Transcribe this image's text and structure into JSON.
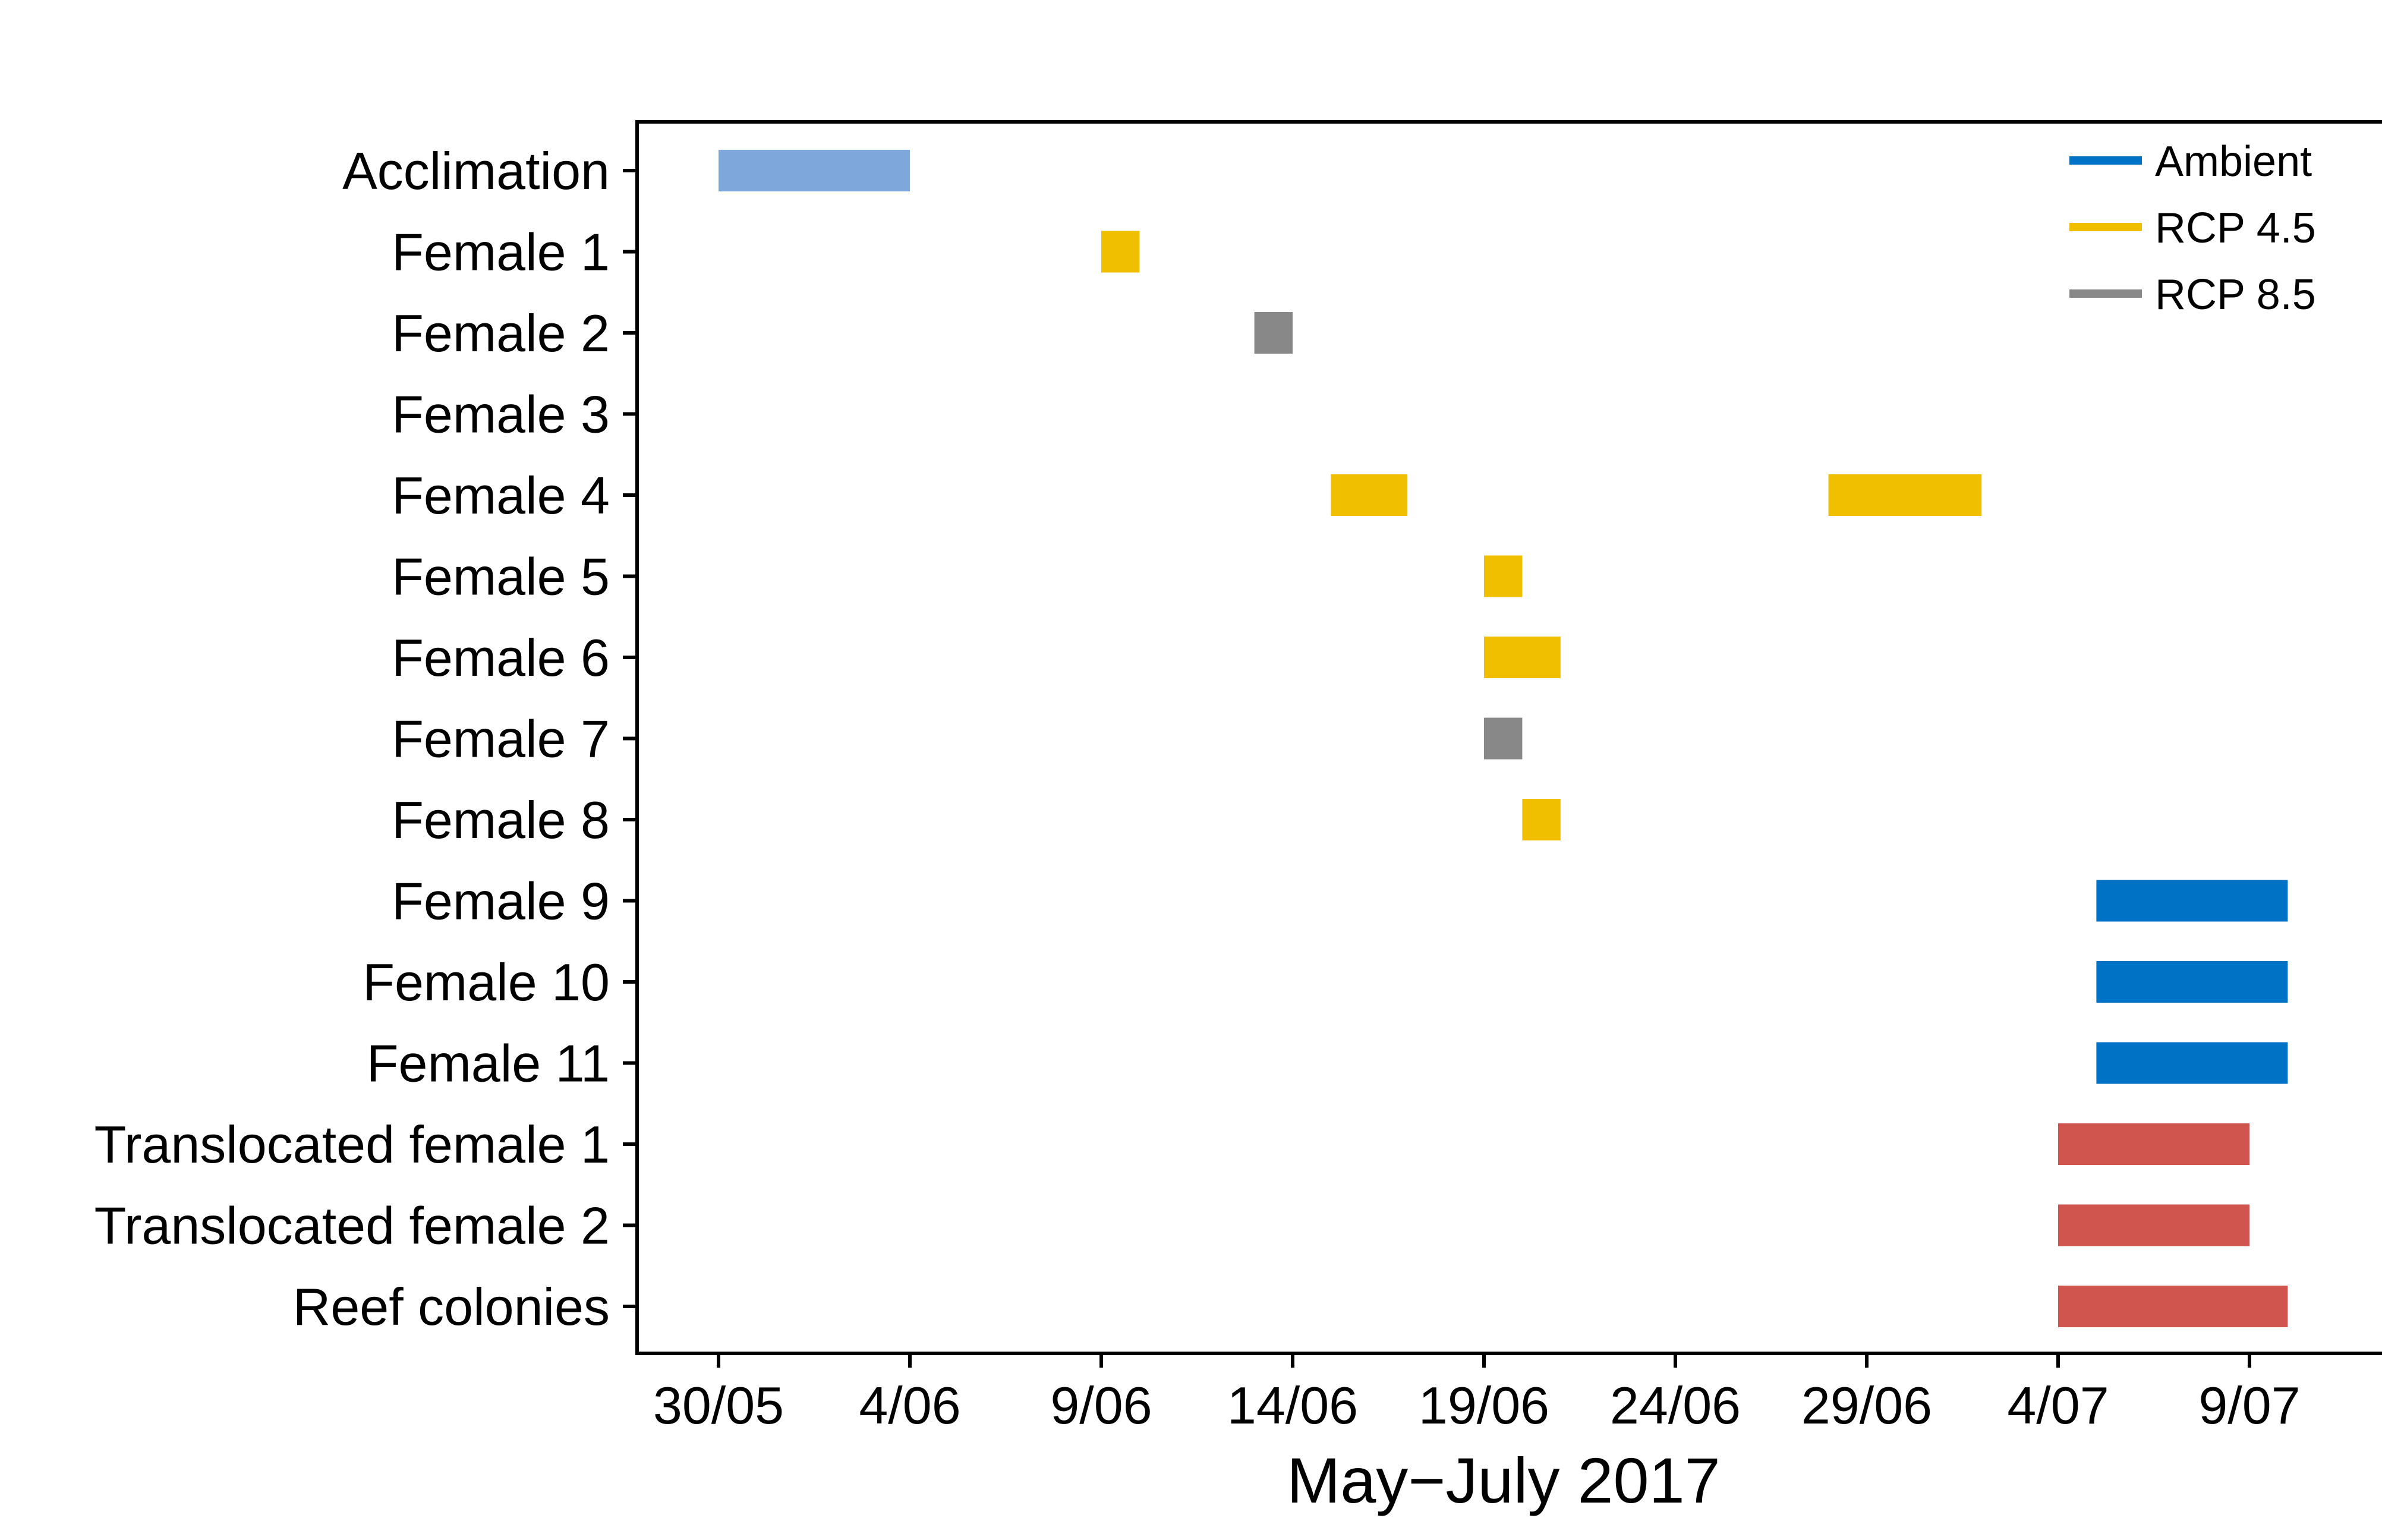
{
  "chart_data": {
    "type": "gantt",
    "xlabel": "May−July 2017",
    "x_ticks": [
      "30/05",
      "4/06",
      "9/06",
      "14/06",
      "19/06",
      "24/06",
      "29/06",
      "4/07",
      "9/07"
    ],
    "x_range": [
      "2017-05-28",
      "2017-07-11"
    ],
    "rows": [
      "Acclimation",
      "Female 1",
      "Female 2",
      "Female 3",
      "Female 4",
      "Female 5",
      "Female 6",
      "Female 7",
      "Female 8",
      "Female 9",
      "Female 10",
      "Female 11",
      "Translocated female 1",
      "Translocated female 2",
      "Reef colonies"
    ],
    "legend": {
      "position": "top-right",
      "entries": [
        {
          "name": "Ambient",
          "color": "#0072C6"
        },
        {
          "name": "RCP 4.5",
          "color": "#F0C000"
        },
        {
          "name": "RCP 8.5",
          "color": "#888888"
        }
      ]
    },
    "bars": [
      {
        "row": "Acclimation",
        "start": "2017-05-30",
        "end": "2017-06-04",
        "color": "#7EA8DC"
      },
      {
        "row": "Female 1",
        "start": "2017-06-09",
        "end": "2017-06-10",
        "color": "#F0C000"
      },
      {
        "row": "Female 2",
        "start": "2017-06-13",
        "end": "2017-06-14",
        "color": "#888888"
      },
      {
        "row": "Female 4",
        "start": "2017-06-15",
        "end": "2017-06-17",
        "color": "#F0C000"
      },
      {
        "row": "Female 4",
        "start": "2017-06-28",
        "end": "2017-07-02",
        "color": "#F0C000"
      },
      {
        "row": "Female 5",
        "start": "2017-06-19",
        "end": "2017-06-20",
        "color": "#F0C000"
      },
      {
        "row": "Female 6",
        "start": "2017-06-19",
        "end": "2017-06-21",
        "color": "#F0C000"
      },
      {
        "row": "Female 7",
        "start": "2017-06-19",
        "end": "2017-06-20",
        "color": "#888888"
      },
      {
        "row": "Female 8",
        "start": "2017-06-20",
        "end": "2017-06-21",
        "color": "#F0C000"
      },
      {
        "row": "Female 9",
        "start": "2017-07-05",
        "end": "2017-07-10",
        "color": "#0072C6"
      },
      {
        "row": "Female 10",
        "start": "2017-07-05",
        "end": "2017-07-10",
        "color": "#0072C6"
      },
      {
        "row": "Female 11",
        "start": "2017-07-05",
        "end": "2017-07-10",
        "color": "#0072C6"
      },
      {
        "row": "Translocated female 1",
        "start": "2017-07-04",
        "end": "2017-07-09",
        "color": "#D0554E"
      },
      {
        "row": "Translocated female 2",
        "start": "2017-07-04",
        "end": "2017-07-09",
        "color": "#D0554E"
      },
      {
        "row": "Reef colonies",
        "start": "2017-07-04",
        "end": "2017-07-10",
        "color": "#D0554E"
      }
    ],
    "grid": false
  }
}
